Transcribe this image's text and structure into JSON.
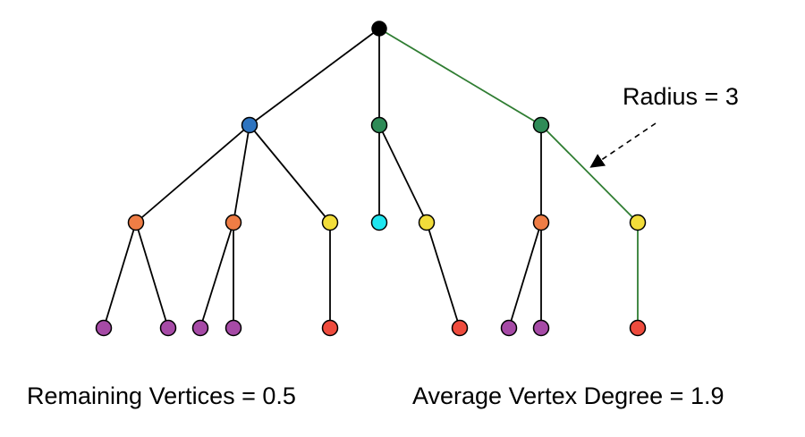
{
  "annotation": {
    "radius_label": "Radius = 3"
  },
  "footer": {
    "remaining_vertices": "Remaining Vertices = 0.5",
    "average_vertex_degree": "Average Vertex Degree = 1.9"
  },
  "colors": {
    "black": "#000000",
    "blue": "#2e74c0",
    "green": "#2e8b57",
    "orange": "#ef7d45",
    "yellow": "#f2dd3a",
    "cyan": "#1fe6f0",
    "purple": "#a64aa6",
    "red": "#ee4b3d",
    "radius_path": "#2f7d32"
  },
  "nodes": [
    {
      "id": "root",
      "color": "black"
    },
    {
      "id": "a",
      "color": "blue"
    },
    {
      "id": "b",
      "color": "green"
    },
    {
      "id": "c",
      "color": "green"
    },
    {
      "id": "a1",
      "color": "orange"
    },
    {
      "id": "a2",
      "color": "orange"
    },
    {
      "id": "a3",
      "color": "yellow"
    },
    {
      "id": "b1",
      "color": "cyan"
    },
    {
      "id": "b2",
      "color": "yellow"
    },
    {
      "id": "c1",
      "color": "orange"
    },
    {
      "id": "c2",
      "color": "yellow"
    },
    {
      "id": "a1x",
      "color": "purple"
    },
    {
      "id": "a1y",
      "color": "purple"
    },
    {
      "id": "a2x",
      "color": "purple"
    },
    {
      "id": "a2y",
      "color": "purple"
    },
    {
      "id": "a3x",
      "color": "red"
    },
    {
      "id": "b2x",
      "color": "red"
    },
    {
      "id": "c1x",
      "color": "purple"
    },
    {
      "id": "c1y",
      "color": "purple"
    },
    {
      "id": "c2x",
      "color": "red"
    }
  ],
  "edges": [
    {
      "from": "root",
      "to": "a",
      "radius_path": false
    },
    {
      "from": "root",
      "to": "b",
      "radius_path": false
    },
    {
      "from": "root",
      "to": "c",
      "radius_path": true
    },
    {
      "from": "a",
      "to": "a1",
      "radius_path": false
    },
    {
      "from": "a",
      "to": "a2",
      "radius_path": false
    },
    {
      "from": "a",
      "to": "a3",
      "radius_path": false
    },
    {
      "from": "b",
      "to": "b1",
      "radius_path": false
    },
    {
      "from": "b",
      "to": "b2",
      "radius_path": false
    },
    {
      "from": "c",
      "to": "c1",
      "radius_path": false
    },
    {
      "from": "c",
      "to": "c2",
      "radius_path": true
    },
    {
      "from": "a1",
      "to": "a1x",
      "radius_path": false
    },
    {
      "from": "a1",
      "to": "a1y",
      "radius_path": false
    },
    {
      "from": "a2",
      "to": "a2x",
      "radius_path": false
    },
    {
      "from": "a2",
      "to": "a2y",
      "radius_path": false
    },
    {
      "from": "a3",
      "to": "a3x",
      "radius_path": false
    },
    {
      "from": "b2",
      "to": "b2x",
      "radius_path": false
    },
    {
      "from": "c1",
      "to": "c1x",
      "radius_path": false
    },
    {
      "from": "c1",
      "to": "c1y",
      "radius_path": false
    },
    {
      "from": "c2",
      "to": "c2x",
      "radius_path": true
    }
  ]
}
